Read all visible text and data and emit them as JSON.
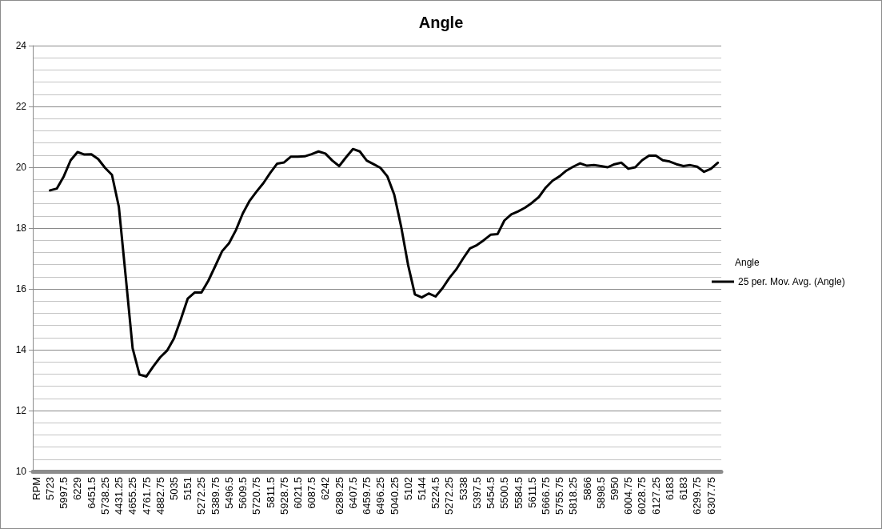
{
  "chart_data": {
    "type": "line",
    "title": "Angle",
    "legend_title": "Angle",
    "categories": [
      "RPM",
      null,
      "5723",
      null,
      "5997.5",
      null,
      "6229",
      null,
      "6451.5",
      null,
      "5738.25",
      null,
      "4431.25",
      null,
      "4655.25",
      null,
      "4761.75",
      null,
      "4882.75",
      null,
      "5035",
      null,
      "5151",
      null,
      "5272.25",
      null,
      "5389.75",
      null,
      "5496.5",
      null,
      "5609.5",
      null,
      "5720.75",
      null,
      "5811.5",
      null,
      "5928.75",
      null,
      "6021.5",
      null,
      "6087.5",
      null,
      "6242",
      null,
      "6289.25",
      null,
      "6407.5",
      null,
      "6459.75",
      null,
      "6496.25",
      null,
      "5040.25",
      null,
      "5102",
      null,
      "5144",
      null,
      "5224.5",
      null,
      "5272.25",
      null,
      "5338",
      null,
      "5397.5",
      null,
      "5454.5",
      null,
      "5500.5",
      null,
      "5584.5",
      null,
      "5611.5",
      null,
      "5666.75",
      null,
      "5755.75",
      null,
      "5818.25",
      null,
      "5866",
      null,
      "5898.5",
      null,
      "5950",
      null,
      "6004.75",
      null,
      "6028.75",
      null,
      "6127.25",
      null,
      "6183",
      null,
      "6183",
      null,
      "6299.75",
      null,
      "6307.75",
      null
    ],
    "series": [
      {
        "name": "25 per. Mov. Avg. (Angle)",
        "color": "#000000",
        "values": [
          null,
          null,
          19.24,
          19.3,
          19.7,
          20.23,
          20.5,
          20.42,
          20.43,
          20.27,
          19.98,
          19.75,
          18.7,
          16.4,
          14.05,
          13.18,
          13.12,
          13.45,
          13.75,
          13.97,
          14.37,
          15.0,
          15.68,
          15.88,
          15.88,
          16.27,
          16.75,
          17.24,
          17.5,
          17.93,
          18.48,
          18.9,
          19.2,
          19.48,
          19.82,
          20.12,
          20.16,
          20.35,
          20.35,
          20.36,
          20.43,
          20.52,
          20.45,
          20.22,
          20.04,
          20.33,
          20.6,
          20.52,
          20.22,
          20.1,
          19.98,
          19.7,
          19.1,
          18.05,
          16.8,
          15.82,
          15.72,
          15.85,
          15.75,
          16.02,
          16.36,
          16.64,
          17.0,
          17.33,
          17.44,
          17.6,
          17.78,
          17.8,
          18.25,
          18.45,
          18.55,
          18.67,
          18.83,
          19.02,
          19.33,
          19.56,
          19.7,
          19.89,
          20.02,
          20.13,
          20.05,
          20.07,
          20.04,
          20.0,
          20.1,
          20.15,
          19.95,
          20.0,
          20.23,
          20.38,
          20.38,
          20.23,
          20.19,
          20.1,
          20.04,
          20.07,
          20.02,
          19.85,
          19.95,
          20.15
        ]
      }
    ],
    "ylim": [
      10,
      24
    ],
    "yticks": [
      10,
      {
        "value": 10.4,
        "label": null
      },
      {
        "value": 10.8,
        "label": null
      },
      {
        "value": 11.2,
        "label": null
      },
      {
        "value": 11.6,
        "label": null
      },
      12,
      {
        "value": 12.4,
        "label": null
      },
      {
        "value": 12.8,
        "label": null
      },
      {
        "value": 13.2,
        "label": null
      },
      {
        "value": 13.6,
        "label": null
      },
      14,
      {
        "value": 14.4,
        "label": null
      },
      {
        "value": 14.8,
        "label": null
      },
      {
        "value": 15.2,
        "label": null
      },
      {
        "value": 15.6,
        "label": null
      },
      16,
      {
        "value": 16.4,
        "label": null
      },
      {
        "value": 16.8,
        "label": null
      },
      {
        "value": 17.2,
        "label": null
      },
      {
        "value": 17.6,
        "label": null
      },
      18,
      {
        "value": 18.4,
        "label": null
      },
      {
        "value": 18.8,
        "label": null
      },
      {
        "value": 19.2,
        "label": null
      },
      {
        "value": 19.6,
        "label": null
      },
      20,
      {
        "value": 20.4,
        "label": null
      },
      {
        "value": 20.8,
        "label": null
      },
      {
        "value": 21.2,
        "label": null
      },
      {
        "value": 21.6,
        "label": null
      },
      22,
      {
        "value": 22.4,
        "label": null
      },
      {
        "value": 22.8,
        "label": null
      },
      {
        "value": 23.2,
        "label": null
      },
      {
        "value": 23.6,
        "label": null
      },
      24
    ],
    "grid": "y",
    "legend": "right",
    "marker": "none",
    "line_style": "solid"
  }
}
